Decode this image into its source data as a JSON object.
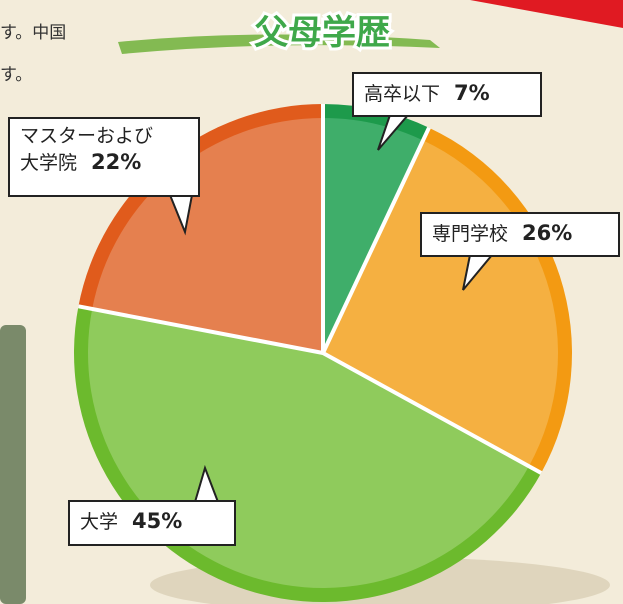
{
  "chart_data": {
    "type": "pie",
    "title": "父母学歴",
    "categories": [
      "高卒以下",
      "専門学校",
      "大学",
      "マスターおよび\n大学院"
    ],
    "values": [
      7,
      26,
      45,
      22
    ],
    "value_labels": [
      "7%",
      "26%",
      "45%",
      "22%"
    ],
    "colors": [
      "#3fae6a",
      "#f5b041",
      "#8fcb5c",
      "#e5804f"
    ],
    "rim_colors": [
      "#1d9a4b",
      "#f39a12",
      "#6cba2d",
      "#e05b1c"
    ]
  },
  "side_text": [
    "す。中国",
    "す。"
  ]
}
